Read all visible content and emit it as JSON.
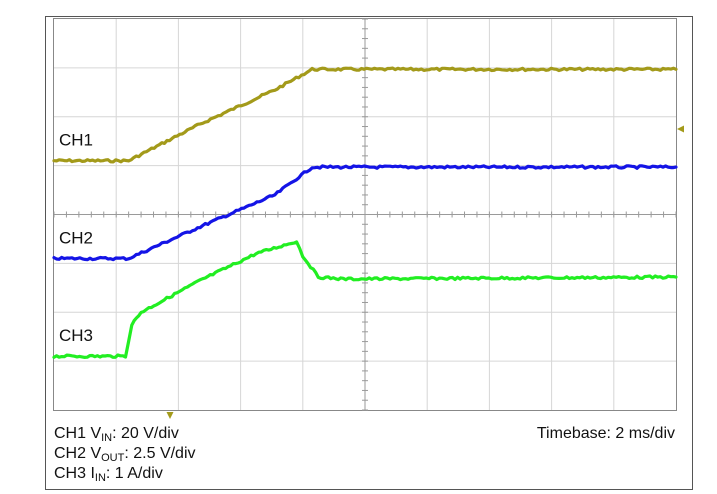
{
  "chart_data": {
    "type": "line",
    "grid": true,
    "xlim": [
      0,
      20
    ],
    "ylim": [
      0,
      8
    ],
    "series": [
      {
        "name": "CH1",
        "color": "#a39a1a",
        "x": [
          0,
          2.4,
          4.7,
          7.1,
          8.3,
          20
        ],
        "y": [
          5.1,
          5.1,
          5.85,
          6.55,
          6.97,
          6.97
        ]
      },
      {
        "name": "CH2",
        "color": "#1414e6",
        "x": [
          0,
          2.4,
          4.7,
          7.1,
          8.3,
          20
        ],
        "y": [
          3.1,
          3.1,
          3.75,
          4.4,
          4.97,
          4.97
        ]
      },
      {
        "name": "CH3",
        "color": "#22ee22",
        "x": [
          0,
          2.3,
          2.5,
          2.8,
          4.7,
          6.5,
          7.8,
          8.0,
          8.5,
          9.3,
          20
        ],
        "y": [
          1.1,
          1.1,
          1.75,
          2.0,
          2.65,
          3.2,
          3.45,
          3.15,
          2.72,
          2.68,
          2.72
        ]
      }
    ],
    "captions": {
      "ch1": {
        "pre": "CH1 V",
        "sub": "IN",
        "post": ": 20 V/div"
      },
      "ch2": {
        "pre": "CH2 V",
        "sub": "OUT",
        "post": ": 2.5 V/div"
      },
      "ch3": {
        "pre": "CH3 I",
        "sub": "IN",
        "post": ": 1 A/div"
      },
      "timebase": "Timebase: 2 ms/div"
    }
  }
}
